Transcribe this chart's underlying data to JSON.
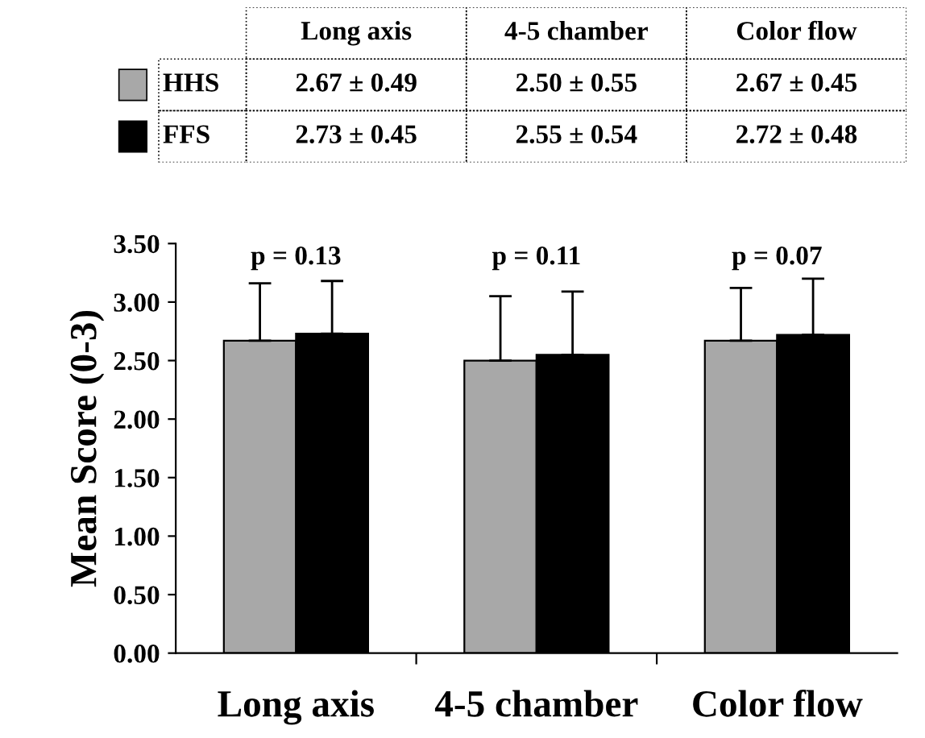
{
  "chart_data": {
    "type": "bar",
    "ylabel": "Mean Score (0-3)",
    "categories": [
      "Long axis",
      "4-5 chamber",
      "Color flow"
    ],
    "series": [
      {
        "name": "HHS",
        "color": "#a8a8a8",
        "values": [
          2.67,
          2.5,
          2.67
        ],
        "errors": [
          0.49,
          0.55,
          0.45
        ],
        "value_labels": [
          "2.67 ± 0.49",
          "2.50 ± 0.55",
          "2.67 ± 0.45"
        ]
      },
      {
        "name": "FFS",
        "color": "#000000",
        "values": [
          2.73,
          2.55,
          2.72
        ],
        "errors": [
          0.45,
          0.54,
          0.48
        ],
        "value_labels": [
          "2.73 ± 0.45",
          "2.55 ± 0.54",
          "2.72 ± 0.48"
        ]
      }
    ],
    "ylim": [
      0,
      3.5
    ],
    "yticks": [
      {
        "value": 0,
        "label": "0.00"
      },
      {
        "value": 0.5,
        "label": "0.50"
      },
      {
        "value": 1,
        "label": "1.00"
      },
      {
        "value": 1.5,
        "label": "1.50"
      },
      {
        "value": 2,
        "label": "2.00"
      },
      {
        "value": 2.5,
        "label": "2.50"
      },
      {
        "value": 3,
        "label": "3.00"
      },
      {
        "value": 3.5,
        "label": "3.50"
      }
    ],
    "annotations": [
      "p = 0.13",
      "p = 0.11",
      "p = 0.07"
    ],
    "grid": false,
    "legend": "top"
  }
}
